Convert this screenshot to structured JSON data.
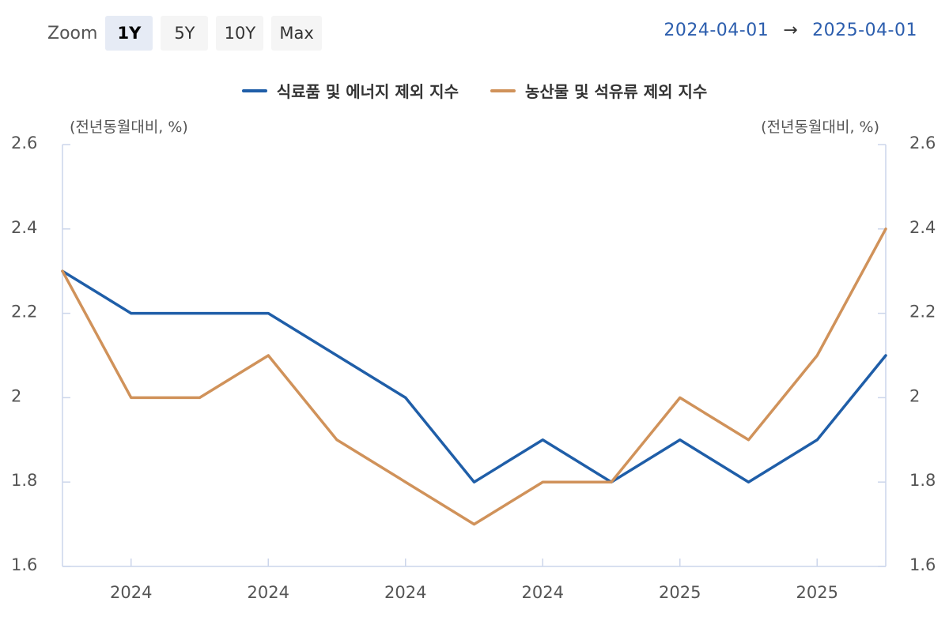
{
  "toolbar": {
    "zoom_label": "Zoom",
    "buttons": [
      "1Y",
      "5Y",
      "10Y",
      "Max"
    ],
    "active": "1Y"
  },
  "range": {
    "from": "2024-04-01",
    "arrow": "→",
    "to": "2025-04-01"
  },
  "units": {
    "left": "(전년동월대비, %)",
    "right": "(전년동월대비, %)"
  },
  "chart_data": {
    "type": "line",
    "x": [
      "2024-04",
      "2024-05",
      "2024-06",
      "2024-07",
      "2024-08",
      "2024-09",
      "2024-10",
      "2024-11",
      "2024-12",
      "2025-01",
      "2025-02",
      "2025-03",
      "2025-04"
    ],
    "x_tick_labels": [
      "2024",
      "2024",
      "2024",
      "2024",
      "2025",
      "2025"
    ],
    "y_ticks": [
      "1.6",
      "1.8",
      "2",
      "2.2",
      "2.4",
      "2.6"
    ],
    "ylim": [
      1.6,
      2.6
    ],
    "series": [
      {
        "name": "식료품 및 에너지 제외 지수",
        "color": "#1f5ea8",
        "values": [
          2.3,
          2.2,
          2.2,
          2.2,
          2.1,
          2.0,
          1.8,
          1.9,
          1.8,
          1.9,
          1.8,
          1.9,
          2.1
        ]
      },
      {
        "name": "농산물 및 석유류 제외 지수",
        "color": "#d0925a",
        "values": [
          2.3,
          2.0,
          2.0,
          2.1,
          1.9,
          1.8,
          1.7,
          1.8,
          1.8,
          2.0,
          1.9,
          2.1,
          2.4
        ]
      }
    ],
    "grid": false,
    "legend_position": "top-center"
  }
}
